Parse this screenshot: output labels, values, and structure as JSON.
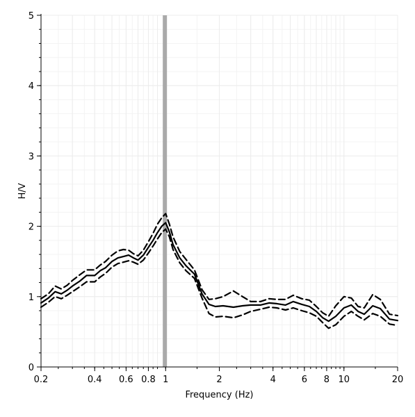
{
  "chart_data": {
    "type": "line",
    "title": "",
    "xlabel": "Frequency (Hz)",
    "ylabel": "H/V",
    "xscale": "log",
    "xlim": [
      0.2,
      20
    ],
    "ylim": [
      0,
      5
    ],
    "x_ticks": [
      0.2,
      0.4,
      0.6,
      0.8,
      1,
      2,
      4,
      6,
      8,
      10,
      20
    ],
    "x_tick_labels": [
      "0.2",
      "0.4",
      "0.6",
      "0.8",
      "1",
      "2",
      "4",
      "6",
      "8",
      "10",
      "20"
    ],
    "y_ticks": [
      0,
      1,
      2,
      3,
      4,
      5
    ],
    "y_tick_labels": [
      "0",
      "1",
      "2",
      "3",
      "4",
      "5"
    ],
    "grid": true,
    "peak_frequency": 0.99,
    "colors": {
      "lines": "#000000",
      "peak_band": "#aaaaaa",
      "grid": "#ececec"
    },
    "series": [
      {
        "style": "solid",
        "x": [
          0.2,
          0.22,
          0.24,
          0.26,
          0.28,
          0.3,
          0.33,
          0.36,
          0.4,
          0.43,
          0.46,
          0.5,
          0.54,
          0.58,
          0.62,
          0.66,
          0.7,
          0.75,
          0.8,
          0.85,
          0.9,
          0.95,
          1.0,
          1.05,
          1.1,
          1.2,
          1.3,
          1.45,
          1.6,
          1.75,
          1.9,
          2.1,
          2.4,
          2.7,
          3.0,
          3.4,
          3.8,
          4.2,
          4.7,
          5.2,
          5.8,
          6.4,
          7.0,
          7.6,
          8.2,
          9.0,
          10.0,
          11.0,
          12.0,
          13.0,
          14.5,
          16.0,
          18.0,
          20.0
        ],
        "y": [
          0.91,
          0.98,
          1.07,
          1.04,
          1.09,
          1.15,
          1.22,
          1.3,
          1.3,
          1.37,
          1.41,
          1.5,
          1.55,
          1.57,
          1.59,
          1.55,
          1.52,
          1.59,
          1.7,
          1.8,
          1.91,
          2.0,
          2.05,
          1.92,
          1.74,
          1.55,
          1.44,
          1.32,
          1.04,
          0.89,
          0.86,
          0.87,
          0.85,
          0.87,
          0.88,
          0.88,
          0.91,
          0.9,
          0.88,
          0.93,
          0.89,
          0.86,
          0.79,
          0.7,
          0.65,
          0.72,
          0.84,
          0.88,
          0.79,
          0.75,
          0.87,
          0.83,
          0.68,
          0.66
        ]
      },
      {
        "style": "dashed",
        "x": [
          0.2,
          0.22,
          0.24,
          0.26,
          0.28,
          0.3,
          0.33,
          0.36,
          0.4,
          0.43,
          0.46,
          0.5,
          0.54,
          0.58,
          0.62,
          0.66,
          0.7,
          0.75,
          0.8,
          0.85,
          0.9,
          0.95,
          1.0,
          1.05,
          1.1,
          1.2,
          1.3,
          1.45,
          1.6,
          1.75,
          1.9,
          2.1,
          2.4,
          2.7,
          3.0,
          3.4,
          3.8,
          4.2,
          4.7,
          5.2,
          5.8,
          6.4,
          7.0,
          7.6,
          8.2,
          9.0,
          10.0,
          11.0,
          12.0,
          13.0,
          14.5,
          16.0,
          18.0,
          20.0
        ],
        "y": [
          0.97,
          1.04,
          1.15,
          1.11,
          1.16,
          1.23,
          1.31,
          1.38,
          1.38,
          1.45,
          1.5,
          1.59,
          1.65,
          1.67,
          1.66,
          1.61,
          1.58,
          1.66,
          1.78,
          1.9,
          2.03,
          2.12,
          2.18,
          2.03,
          1.85,
          1.64,
          1.53,
          1.38,
          1.1,
          0.96,
          0.97,
          1.0,
          1.08,
          1.0,
          0.93,
          0.93,
          0.97,
          0.96,
          0.96,
          1.02,
          0.97,
          0.95,
          0.86,
          0.77,
          0.72,
          0.87,
          1.0,
          0.98,
          0.86,
          0.84,
          1.03,
          0.96,
          0.75,
          0.73
        ]
      },
      {
        "style": "dashed",
        "x": [
          0.2,
          0.22,
          0.24,
          0.26,
          0.28,
          0.3,
          0.33,
          0.36,
          0.4,
          0.43,
          0.46,
          0.5,
          0.54,
          0.58,
          0.62,
          0.66,
          0.7,
          0.75,
          0.8,
          0.85,
          0.9,
          0.95,
          1.0,
          1.05,
          1.1,
          1.2,
          1.3,
          1.45,
          1.6,
          1.75,
          1.9,
          2.1,
          2.4,
          2.7,
          3.0,
          3.4,
          3.8,
          4.2,
          4.7,
          5.2,
          5.8,
          6.4,
          7.0,
          7.6,
          8.2,
          9.0,
          10.0,
          11.0,
          12.0,
          13.0,
          14.5,
          16.0,
          18.0,
          20.0
        ],
        "y": [
          0.85,
          0.92,
          1.0,
          0.97,
          1.02,
          1.07,
          1.14,
          1.21,
          1.21,
          1.28,
          1.33,
          1.42,
          1.47,
          1.49,
          1.51,
          1.49,
          1.46,
          1.52,
          1.62,
          1.72,
          1.82,
          1.91,
          1.96,
          1.85,
          1.67,
          1.48,
          1.37,
          1.26,
          0.98,
          0.76,
          0.71,
          0.72,
          0.7,
          0.74,
          0.79,
          0.82,
          0.85,
          0.84,
          0.81,
          0.84,
          0.8,
          0.77,
          0.72,
          0.63,
          0.55,
          0.6,
          0.72,
          0.79,
          0.72,
          0.67,
          0.76,
          0.72,
          0.61,
          0.59
        ]
      }
    ]
  }
}
